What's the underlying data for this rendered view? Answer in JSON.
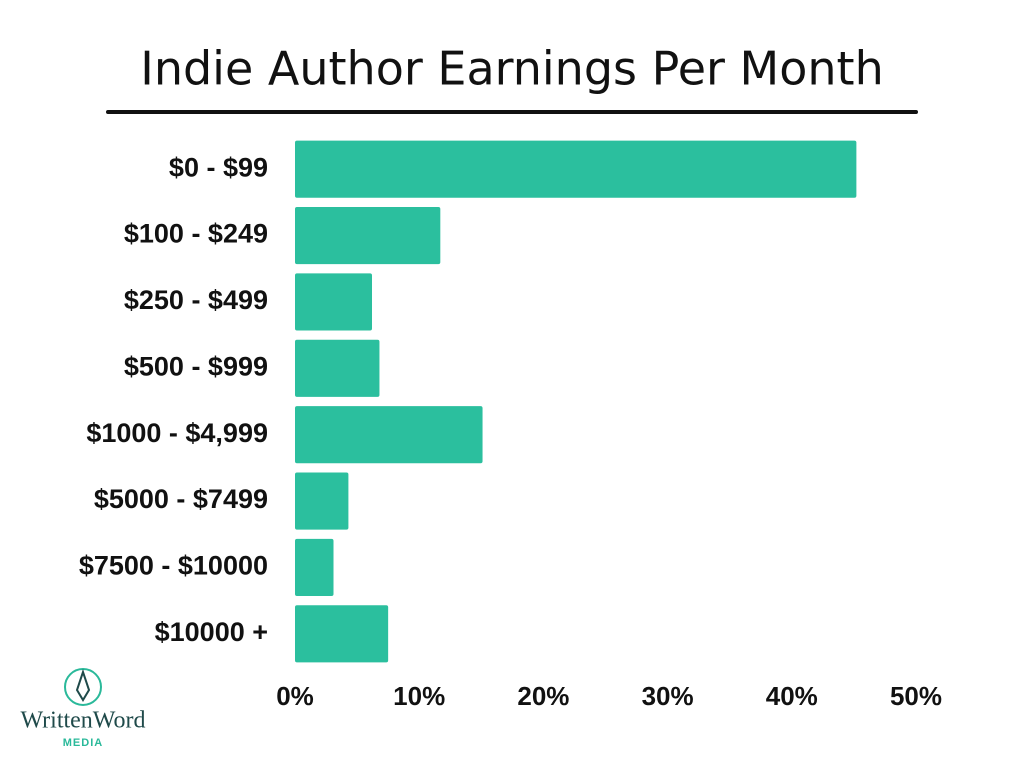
{
  "chart_data": {
    "type": "hbar",
    "title": "Indie Author Earnings Per Month",
    "categories": [
      "$0 - $99",
      "$100 - $249",
      "$250 - $499",
      "$500 - $999",
      "$1000 - $4,999",
      "$5000 - $7499",
      "$7500 - $10000",
      "$10000 +"
    ],
    "values": [
      45.2,
      11.7,
      6.2,
      6.8,
      15.1,
      4.3,
      3.1,
      7.5
    ],
    "color": "#2bbf9e",
    "xlim": [
      0,
      50
    ],
    "xticks": [
      {
        "value": 0,
        "label": "0%"
      },
      {
        "value": 10,
        "label": "10%"
      },
      {
        "value": 20,
        "label": "20%"
      },
      {
        "value": 30,
        "label": "30%"
      },
      {
        "value": 40,
        "label": "40%"
      },
      {
        "value": 50,
        "label": "50%"
      }
    ],
    "grid": false
  },
  "logo": {
    "name": "WrittenWord",
    "subtitle": "MEDIA"
  }
}
